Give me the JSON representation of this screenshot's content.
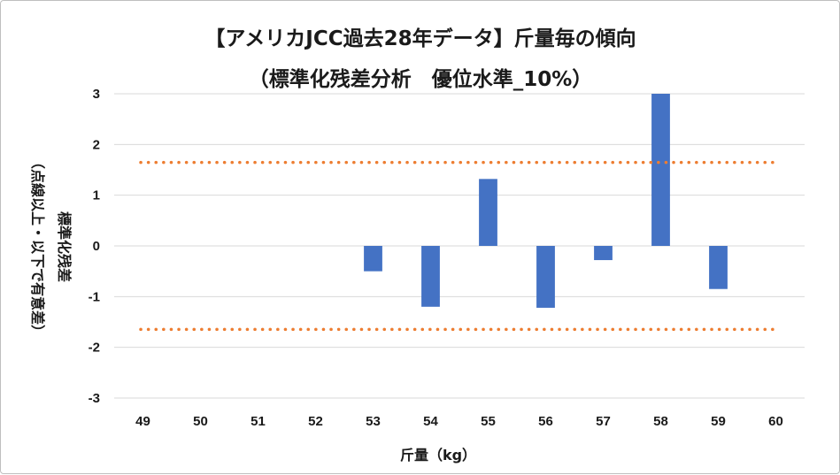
{
  "chart_data": {
    "type": "bar",
    "title_line1": "【アメリカJCC過去28年データ】斤量毎の傾向",
    "title_line2": "（標準化残差分析　優位水準_10%）",
    "xlabel": "斤量（kg）",
    "ylabel_line1": "標準化残差",
    "ylabel_line2": "（点線以上・以下で有意差）",
    "categories": [
      "49",
      "50",
      "51",
      "52",
      "53",
      "54",
      "55",
      "56",
      "57",
      "58",
      "59",
      "60"
    ],
    "values": [
      null,
      null,
      null,
      null,
      -0.5,
      -1.2,
      1.32,
      -1.22,
      -0.28,
      3.0,
      -0.85,
      null
    ],
    "ylim": [
      -3,
      3
    ],
    "yticks": [
      "3",
      "2",
      "1",
      "0",
      "-1",
      "-2",
      "-3"
    ],
    "threshold": 1.645,
    "grid": true,
    "colors": {
      "bar": "#4472c4",
      "threshold": "#ed7d31",
      "grid": "#d9d9d9"
    }
  }
}
